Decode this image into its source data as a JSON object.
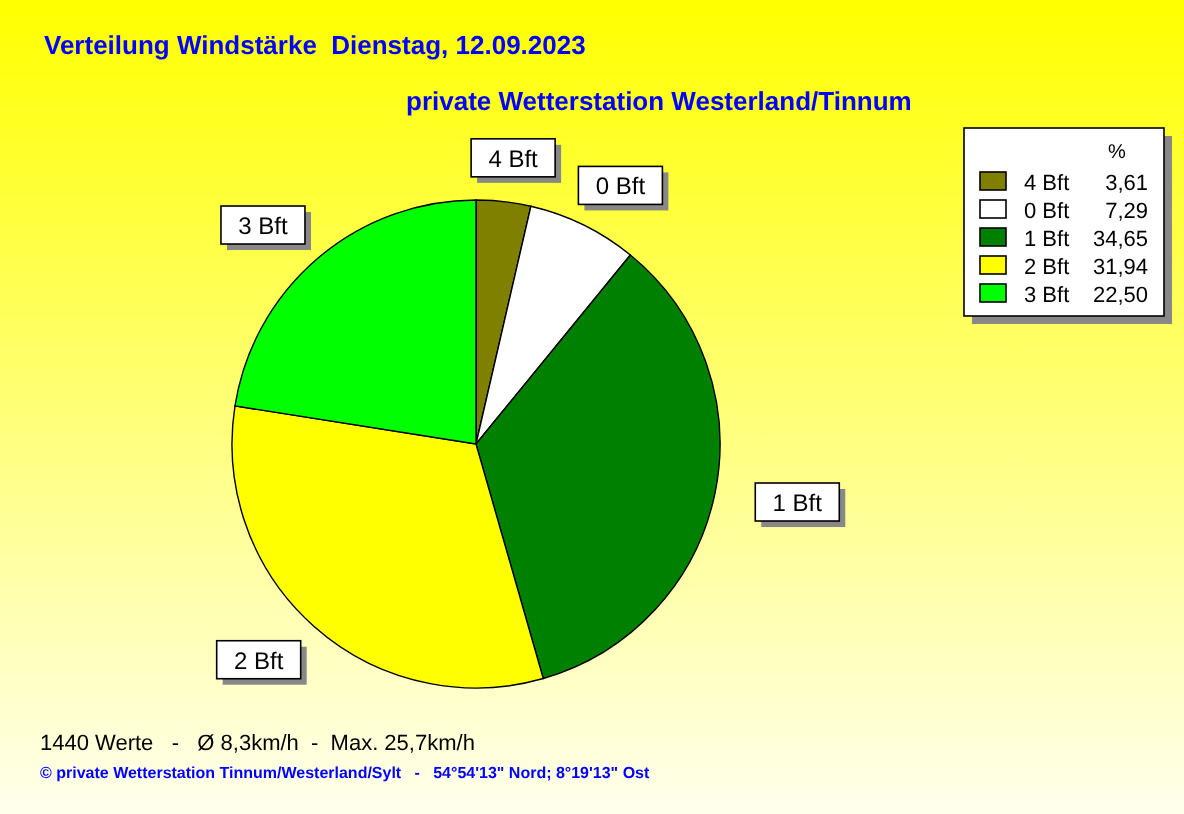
{
  "chart_data": {
    "type": "pie",
    "title": "Verteilung Windstärke  Dienstag, 12.09.2023",
    "subtitle": "private Wetterstation Westerland/Tinnum",
    "categories": [
      "4 Bft",
      "0 Bft",
      "1 Bft",
      "2 Bft",
      "3 Bft"
    ],
    "values": [
      3.61,
      7.29,
      34.65,
      31.94,
      22.5
    ],
    "value_labels": [
      "3,61",
      "7,29",
      "34,65",
      "31,94",
      "22,50"
    ],
    "colors": [
      "#808000",
      "#ffffff",
      "#008000",
      "#ffff00",
      "#00ff00"
    ],
    "legend": "top right",
    "legend_title": "%",
    "annotations": [
      "1440 Werte   -   Ø 8,3km/h  -  Max. 25,7km/h",
      "© private Wetterstation Tinnum/Westerland/Sylt   -   54°54'13\" Nord; 8°19'13\" Ost"
    ]
  }
}
